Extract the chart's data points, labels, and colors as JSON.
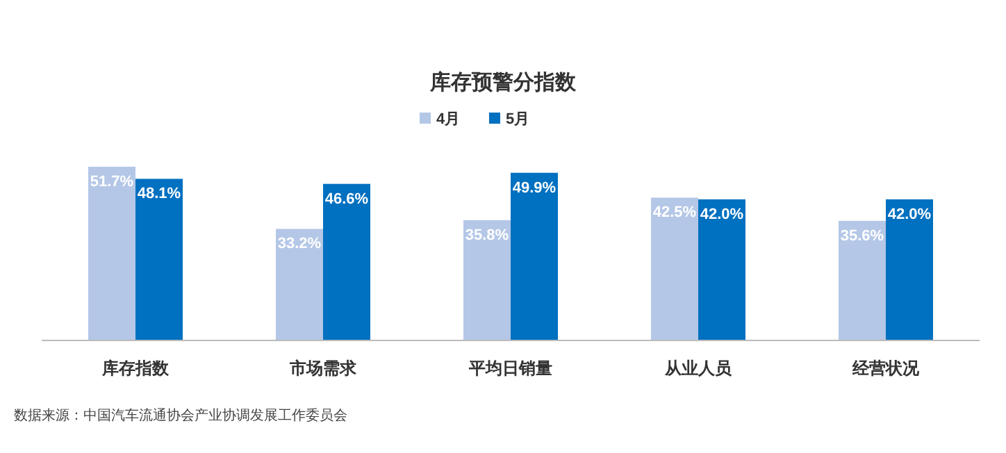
{
  "chart_data": {
    "type": "bar",
    "title": "库存预警分指数",
    "categories": [
      "库存指数",
      "市场需求",
      "平均日销量",
      "从业人员",
      "经营状况"
    ],
    "series": [
      {
        "name": "4月",
        "color": "#b4c7e7",
        "values": [
          51.7,
          33.2,
          35.8,
          42.5,
          35.6
        ],
        "value_labels": [
          "51.7%",
          "33.2%",
          "35.8%",
          "42.5%",
          "35.6%"
        ]
      },
      {
        "name": "5月",
        "color": "#0070c0",
        "values": [
          48.1,
          46.6,
          49.9,
          42.0,
          42.0
        ],
        "value_labels": [
          "48.1%",
          "46.6%",
          "49.9%",
          "42.0%",
          "42.0%"
        ]
      }
    ],
    "legend": "top",
    "annotations": [
      "数据来源：中国汽车流通协会产业协调发展工作委员会"
    ]
  }
}
